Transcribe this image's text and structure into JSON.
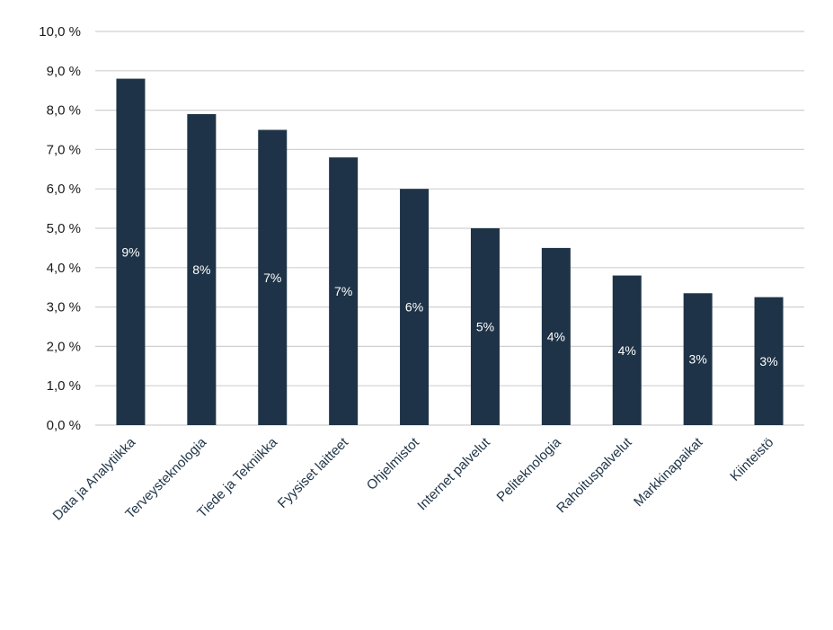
{
  "chart_data": {
    "type": "bar",
    "categories": [
      "Data ja Analytiikka",
      "Terveysteknologia",
      "Tiede ja Tekniikka",
      "Fyysiset laitteet",
      "Ohjelmistot",
      "Internet palvelut",
      "Peliteknologia",
      "Rahoituspalvelut",
      "Markkinapaikat",
      "Kiinteistö"
    ],
    "values": [
      8.8,
      7.9,
      7.5,
      6.8,
      6.0,
      5.0,
      4.5,
      3.8,
      3.35,
      3.25
    ],
    "data_labels": [
      "9%",
      "8%",
      "7%",
      "7%",
      "6%",
      "5%",
      "4%",
      "4%",
      "3%",
      "3%"
    ],
    "ylim": [
      0,
      10
    ],
    "yticks": [
      0,
      1,
      2,
      3,
      4,
      5,
      6,
      7,
      8,
      9,
      10
    ],
    "ytick_labels": [
      "0,0 %",
      "1,0 %",
      "2,0 %",
      "3,0 %",
      "4,0 %",
      "5,0 %",
      "6,0 %",
      "7,0 %",
      "8,0 %",
      "9,0 %",
      "10,0 %"
    ],
    "grid": true,
    "legend": "none",
    "title": "",
    "xlabel": "",
    "ylabel": "",
    "colors": {
      "bar": "#1e3347",
      "grid": "#d0d0d0",
      "tick_text": "#1a1a1a",
      "category_text": "#1e3347",
      "bar_label_text": "#ffffff"
    }
  }
}
